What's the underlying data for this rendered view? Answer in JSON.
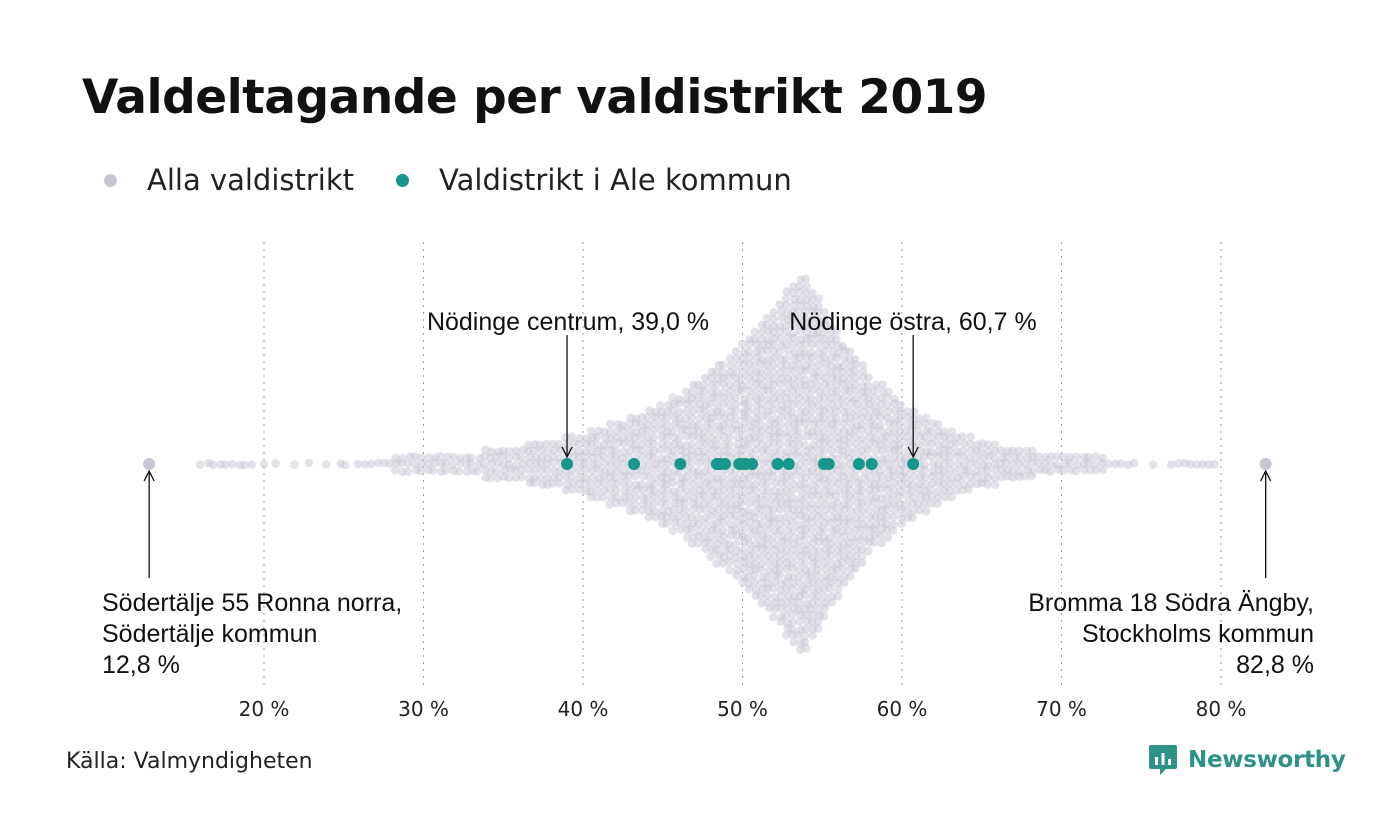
{
  "title": "Valdeltagande per valdistrikt 2019",
  "legend": [
    {
      "label": "Alla valdistrikt",
      "color": "#c8c6d3"
    },
    {
      "label": "Valdistrikt i Ale kommun",
      "color": "#17968a"
    }
  ],
  "source": "Källa: Valmyndigheten",
  "logo": {
    "text": "Newsworthy",
    "color": "#2e9386",
    "icon": "newsworthy-logo-icon"
  },
  "chart_data": {
    "type": "scatter",
    "subtype": "beeswarm",
    "title": "Valdeltagande per valdistrikt 2019",
    "x_ticks": [
      {
        "value": 20,
        "label": "20 %"
      },
      {
        "value": 30,
        "label": "30 %"
      },
      {
        "value": 40,
        "label": "40 %"
      },
      {
        "value": 50,
        "label": "50 %"
      },
      {
        "value": 60,
        "label": "60 %"
      },
      {
        "value": 70,
        "label": "70 %"
      },
      {
        "value": 80,
        "label": "80 %"
      }
    ],
    "xlim": [
      12.8,
      82.8
    ],
    "grid": "vertical dotted",
    "legend_position": "top-left",
    "series": [
      {
        "name": "Alla valdistrikt",
        "color": "#c8c6d3",
        "min": 12.8,
        "max": 82.8,
        "peak": 53.8
      },
      {
        "name": "Valdistrikt i Ale kommun",
        "color": "#17968a",
        "values": [
          39.0,
          43.2,
          46.1,
          48.4,
          48.6,
          48.9,
          49.8,
          50.0,
          50.2,
          50.6,
          52.2,
          52.9,
          55.1,
          55.4,
          57.3,
          58.1,
          60.7
        ]
      }
    ],
    "annotations": [
      {
        "name": "nodinge-centrum",
        "lines": [
          "Nödinge centrum, 39,0 %"
        ],
        "value": 39.0,
        "series": 1
      },
      {
        "name": "nodinge-ostra",
        "lines": [
          "Nödinge östra, 60,7 %"
        ],
        "value": 60.7,
        "series": 1
      },
      {
        "name": "sodertalje",
        "lines": [
          "Södertälje 55 Ronna norra,",
          "Södertälje kommun",
          "12,8 %"
        ],
        "value": 12.8,
        "series": 0
      },
      {
        "name": "bromma",
        "lines": [
          "Bromma 18 Södra Ängby,",
          "Stockholms kommun",
          "82,8 %"
        ],
        "value": 82.8,
        "series": 0
      }
    ]
  }
}
